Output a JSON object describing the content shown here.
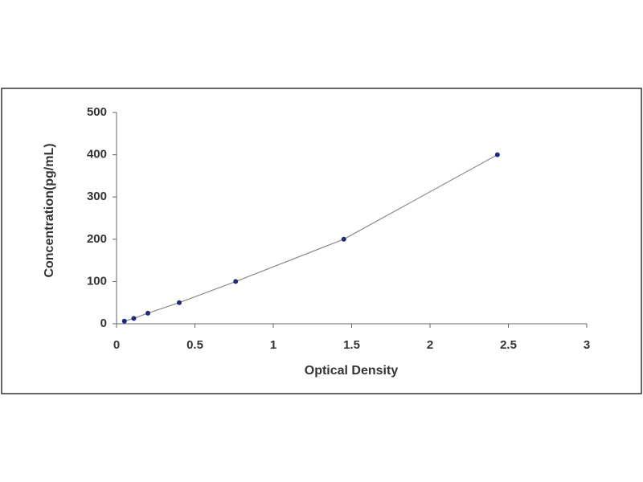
{
  "chart_data": {
    "type": "scatter",
    "x_label": "Optical Density",
    "y_label": "Concentration(pg/mL)",
    "x": [
      0.05,
      0.11,
      0.2,
      0.4,
      0.76,
      1.45,
      2.43
    ],
    "values": [
      6.25,
      12.5,
      25,
      50,
      100,
      200,
      400
    ],
    "color": "#1f2a7a",
    "line_color": "#8a8a8a",
    "xlim": [
      0,
      3
    ],
    "xticks": [
      0,
      0.5,
      1,
      1.5,
      2,
      2.5,
      3
    ],
    "ylim": [
      0,
      500
    ],
    "yticks": [
      0,
      100,
      200,
      300,
      400,
      500
    ]
  }
}
